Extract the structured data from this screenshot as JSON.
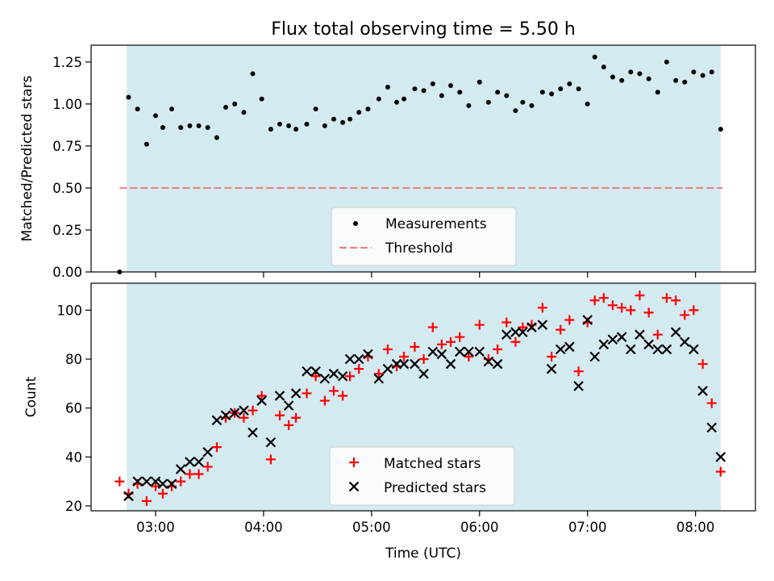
{
  "colors": {
    "shade": "#d4eaf1",
    "measure": "#000000",
    "threshold": "#f08080",
    "matched": "#ff0000",
    "predicted": "#000000"
  },
  "chart_data": [
    {
      "type": "scatter",
      "title": "Flux total observing time = 5.50 h",
      "xlabel": "",
      "ylabel": "Matched/Predicted stars",
      "xlim": [
        2.403,
        8.555
      ],
      "ylim": [
        0.0,
        1.35
      ],
      "yticks": [
        0.0,
        0.25,
        0.5,
        0.75,
        1.0,
        1.25
      ],
      "ytick_labels": [
        "0.00",
        "0.25",
        "0.50",
        "0.75",
        "1.00",
        "1.25"
      ],
      "xticks": [
        3,
        4,
        5,
        6,
        7,
        8
      ],
      "shaded_span": [
        2.733,
        8.233
      ],
      "legend": {
        "placement": "lower center",
        "entries": [
          "Measurements",
          "Threshold"
        ]
      },
      "threshold": {
        "name": "Threshold",
        "y": 0.5,
        "x_range": [
          2.667,
          8.25
        ]
      },
      "series": [
        {
          "name": "Measurements",
          "x": [
            2.667,
            2.75,
            2.833,
            2.917,
            3.0,
            3.067,
            3.15,
            3.233,
            3.317,
            3.4,
            3.483,
            3.567,
            3.65,
            3.733,
            3.817,
            3.9,
            3.983,
            4.067,
            4.15,
            4.233,
            4.3,
            4.4,
            4.483,
            4.567,
            4.65,
            4.733,
            4.8,
            4.883,
            4.967,
            5.067,
            5.15,
            5.233,
            5.3,
            5.4,
            5.483,
            5.567,
            5.65,
            5.733,
            5.817,
            5.9,
            6.0,
            6.083,
            6.167,
            6.25,
            6.333,
            6.4,
            6.483,
            6.583,
            6.667,
            6.75,
            6.833,
            6.917,
            7.0,
            7.067,
            7.15,
            7.233,
            7.317,
            7.4,
            7.483,
            7.567,
            7.65,
            7.733,
            7.817,
            7.9,
            7.983,
            8.067,
            8.15,
            8.233
          ],
          "y": [
            0.0,
            1.04,
            0.97,
            0.76,
            0.93,
            0.86,
            0.97,
            0.86,
            0.87,
            0.87,
            0.86,
            0.8,
            0.98,
            1.0,
            0.95,
            1.18,
            1.03,
            0.85,
            0.88,
            0.87,
            0.85,
            0.88,
            0.97,
            0.87,
            0.91,
            0.89,
            0.91,
            0.95,
            0.97,
            1.03,
            1.1,
            1.01,
            1.03,
            1.09,
            1.08,
            1.12,
            1.05,
            1.11,
            1.07,
            0.99,
            1.13,
            1.01,
            1.07,
            1.05,
            0.96,
            1.01,
            0.99,
            1.07,
            1.06,
            1.09,
            1.12,
            1.09,
            1.0,
            1.28,
            1.22,
            1.16,
            1.14,
            1.19,
            1.18,
            1.15,
            1.07,
            1.25,
            1.14,
            1.13,
            1.19,
            1.17,
            1.19,
            0.85
          ]
        }
      ]
    },
    {
      "type": "scatter",
      "title": "",
      "xlabel": "Time (UTC)",
      "ylabel": "Count",
      "xlim": [
        2.403,
        8.555
      ],
      "ylim": [
        18.0,
        111.0
      ],
      "yticks": [
        20,
        40,
        60,
        80,
        100
      ],
      "ytick_labels": [
        "20",
        "40",
        "60",
        "80",
        "100"
      ],
      "xticks": [
        3,
        4,
        5,
        6,
        7,
        8
      ],
      "xtick_labels": [
        "03:00",
        "04:00",
        "05:00",
        "06:00",
        "07:00",
        "08:00"
      ],
      "shaded_span": [
        2.733,
        8.233
      ],
      "legend": {
        "placement": "lower center",
        "entries": [
          "Matched stars",
          "Predicted stars"
        ]
      },
      "series": [
        {
          "name": "Matched stars",
          "marker": "plus",
          "x": [
            2.667,
            2.75,
            2.833,
            2.917,
            3.0,
            3.067,
            3.15,
            3.233,
            3.317,
            3.4,
            3.483,
            3.567,
            3.65,
            3.733,
            3.817,
            3.9,
            3.983,
            4.067,
            4.15,
            4.233,
            4.3,
            4.4,
            4.483,
            4.567,
            4.65,
            4.733,
            4.8,
            4.883,
            4.967,
            5.067,
            5.15,
            5.233,
            5.3,
            5.4,
            5.483,
            5.567,
            5.65,
            5.733,
            5.817,
            5.9,
            6.0,
            6.083,
            6.167,
            6.25,
            6.333,
            6.4,
            6.483,
            6.583,
            6.667,
            6.75,
            6.833,
            6.917,
            7.0,
            7.067,
            7.15,
            7.233,
            7.317,
            7.4,
            7.483,
            7.567,
            7.65,
            7.733,
            7.817,
            7.9,
            7.983,
            8.067,
            8.15,
            8.233
          ],
          "y": [
            30,
            25,
            29,
            22,
            28,
            25,
            28,
            30,
            33,
            33,
            36,
            44,
            56,
            58,
            56,
            59,
            65,
            39,
            57,
            53,
            56,
            66,
            73,
            63,
            67,
            65,
            73,
            76,
            81,
            74,
            84,
            77,
            81,
            85,
            80,
            93,
            86,
            87,
            89,
            81,
            94,
            80,
            84,
            95,
            87,
            93,
            94,
            101,
            81,
            92,
            96,
            75,
            95,
            104,
            105,
            102,
            101,
            100,
            106,
            99,
            90,
            105,
            104,
            98,
            100,
            78,
            62,
            34
          ]
        },
        {
          "name": "Predicted stars",
          "marker": "x",
          "x": [
            2.75,
            2.833,
            2.917,
            3.0,
            3.067,
            3.15,
            3.233,
            3.317,
            3.4,
            3.483,
            3.567,
            3.65,
            3.733,
            3.817,
            3.9,
            3.983,
            4.067,
            4.15,
            4.233,
            4.3,
            4.4,
            4.483,
            4.567,
            4.65,
            4.733,
            4.8,
            4.883,
            4.967,
            5.067,
            5.15,
            5.233,
            5.3,
            5.4,
            5.483,
            5.567,
            5.65,
            5.733,
            5.817,
            5.9,
            6.0,
            6.083,
            6.167,
            6.25,
            6.333,
            6.4,
            6.483,
            6.583,
            6.667,
            6.75,
            6.833,
            6.917,
            7.0,
            7.067,
            7.15,
            7.233,
            7.317,
            7.4,
            7.483,
            7.567,
            7.65,
            7.733,
            7.817,
            7.9,
            7.983,
            8.067,
            8.15,
            8.233
          ],
          "y": [
            24,
            30,
            30,
            30,
            29,
            29,
            35,
            38,
            38,
            42,
            55,
            57,
            58,
            59,
            50,
            63,
            46,
            65,
            61,
            66,
            75,
            75,
            72,
            74,
            73,
            80,
            80,
            82,
            72,
            76,
            78,
            78,
            78,
            74,
            83,
            82,
            78,
            83,
            83,
            83,
            79,
            78,
            90,
            91,
            91,
            93,
            94,
            76,
            84,
            85,
            69,
            96,
            81,
            86,
            88,
            89,
            84,
            90,
            86,
            84,
            84,
            91,
            87,
            84,
            67,
            52,
            40
          ]
        }
      ]
    }
  ]
}
